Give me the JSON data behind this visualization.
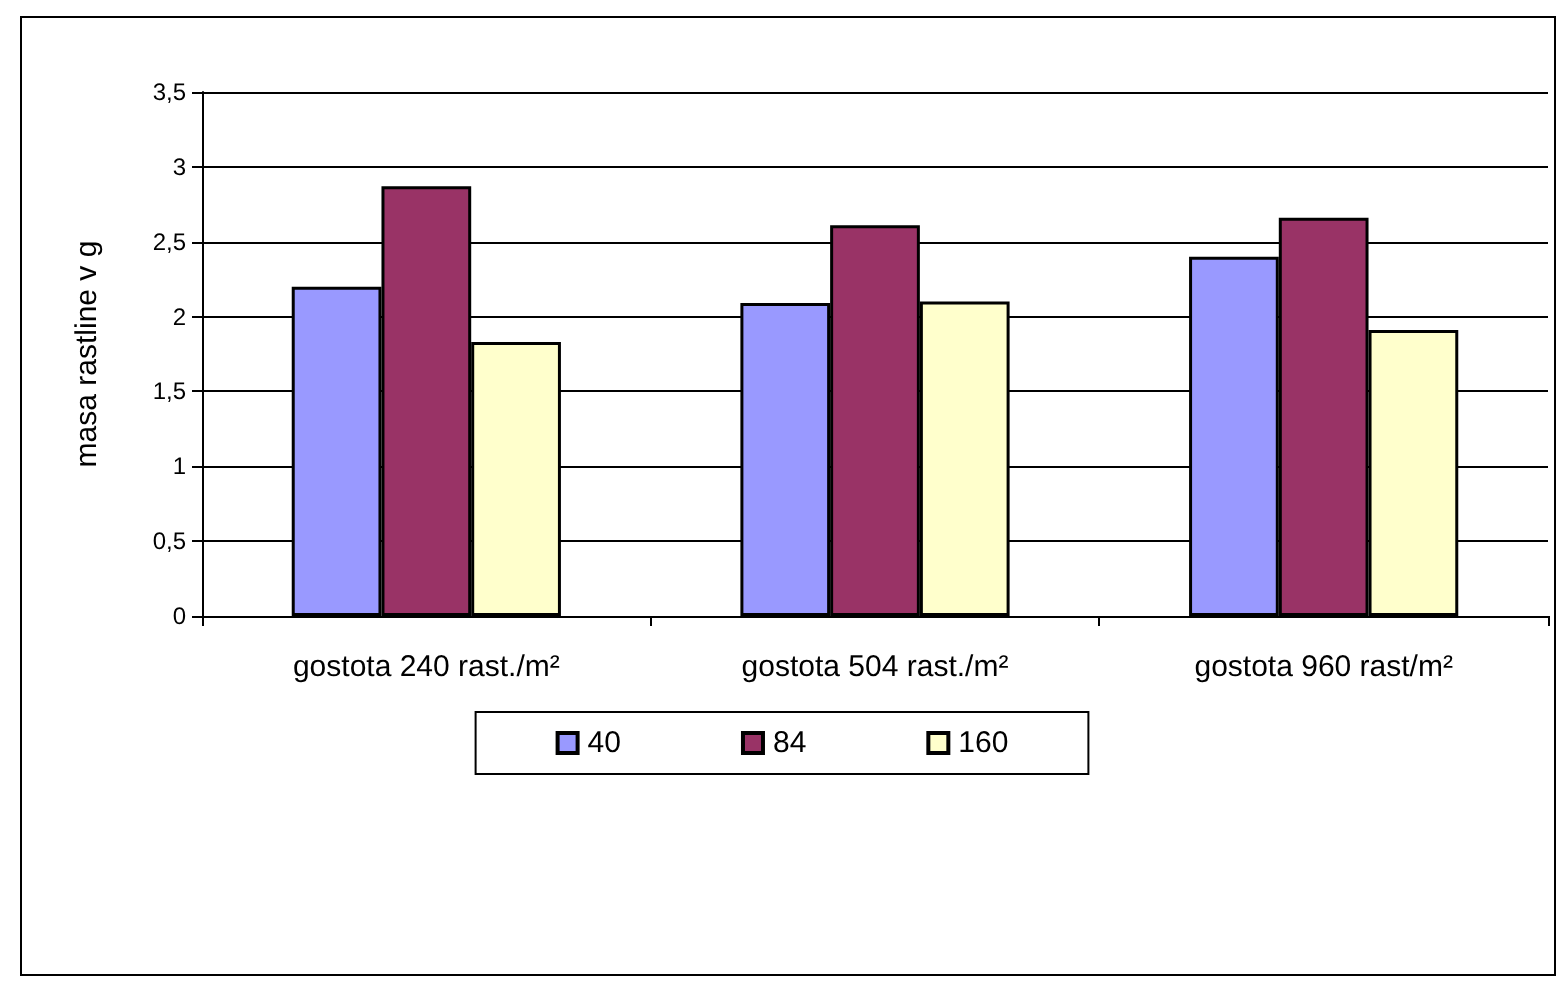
{
  "chart_data": {
    "type": "bar",
    "ylabel": "masa rastline v g",
    "categories": [
      "gostota 240 rast./m²",
      "gostota 504 rast./m²",
      "gostota 960 rast/m²"
    ],
    "series": [
      {
        "name": "40",
        "color": "#9999ff",
        "values": [
          2.2,
          2.09,
          2.4
        ]
      },
      {
        "name": "84",
        "color": "#993366",
        "values": [
          2.87,
          2.61,
          2.66
        ]
      },
      {
        "name": "160",
        "color": "#ffffcc",
        "values": [
          1.83,
          2.1,
          1.91
        ]
      }
    ],
    "ylim": [
      0,
      3.5
    ],
    "yticks": [
      0,
      {
        "value": 0.5,
        "label": "0,5"
      },
      1,
      {
        "value": 1.5,
        "label": "1,5"
      },
      2,
      {
        "value": 2.5,
        "label": "2,5"
      },
      3,
      {
        "value": 3.5,
        "label": "3,5"
      }
    ],
    "grid": "y",
    "legend": "bottom"
  }
}
